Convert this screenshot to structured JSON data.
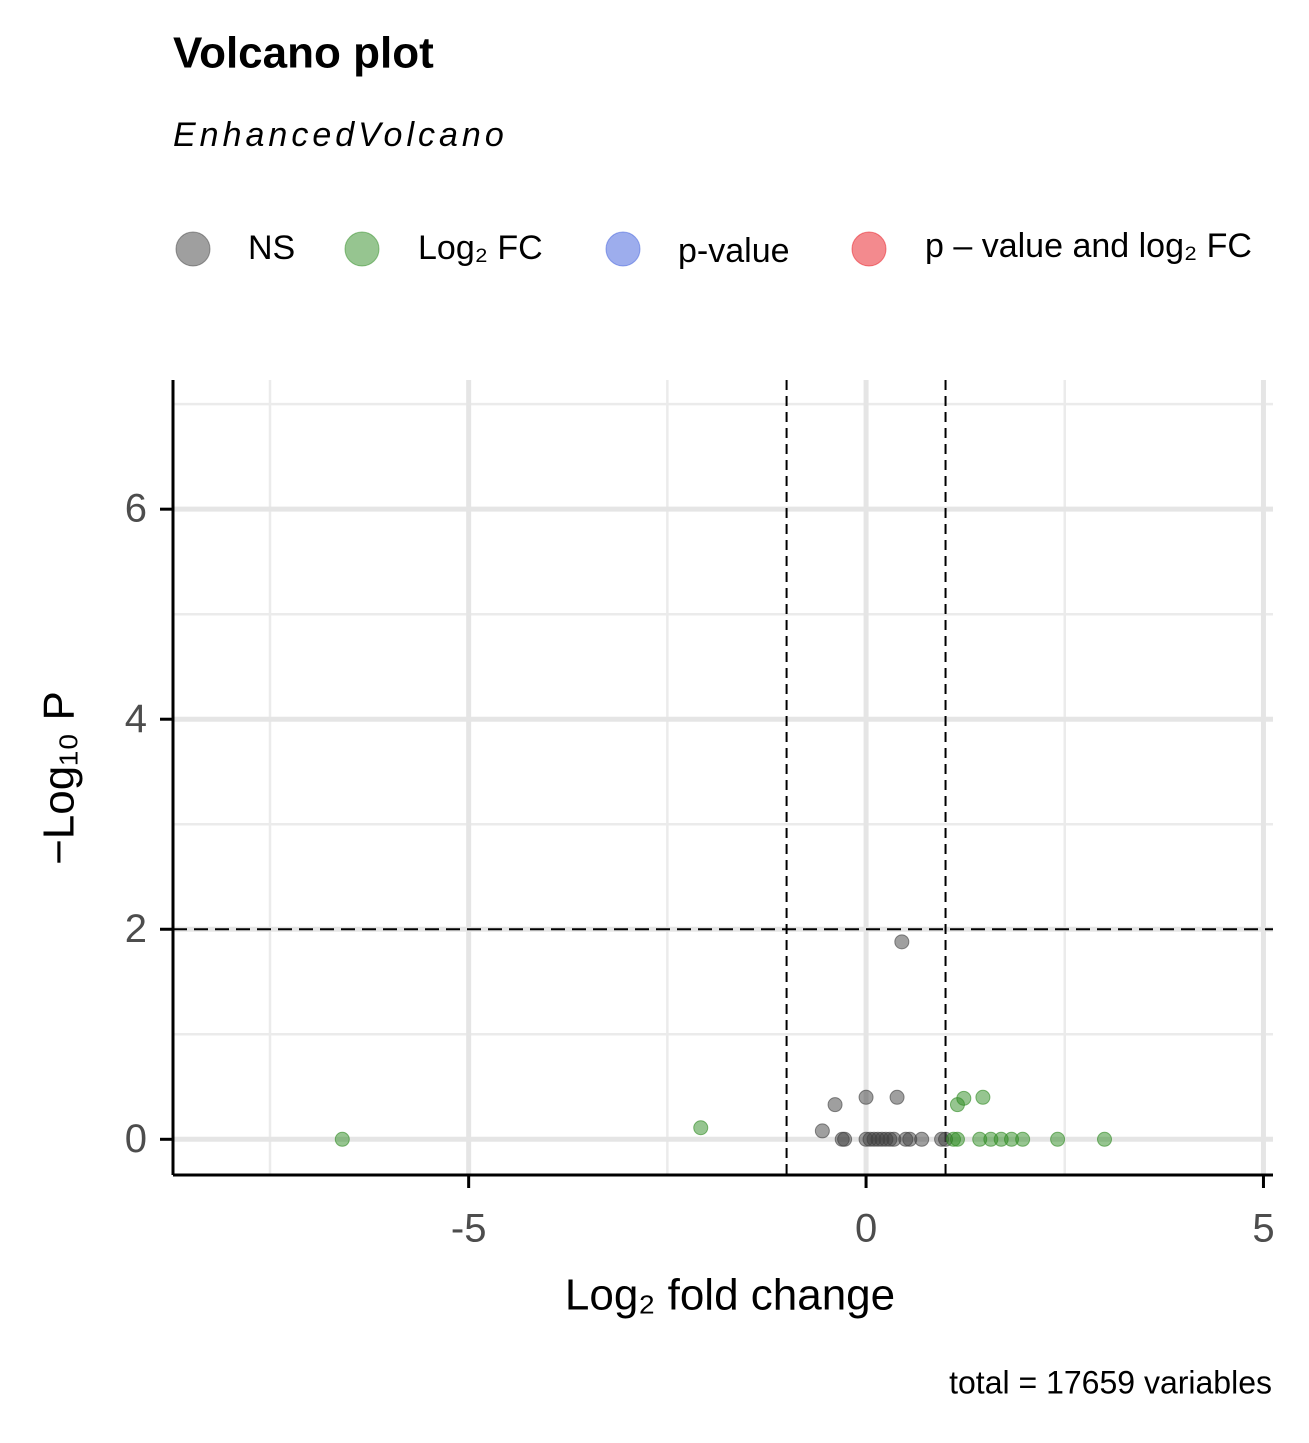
{
  "chart_data": {
    "type": "scatter",
    "title": "Volcano plot",
    "subtitle": "EnhancedVolcano",
    "x_label": "Log₂ fold change",
    "y_label": "−Log₁₀ P",
    "caption": "total = 17659 variables",
    "xlim": [
      -8.72,
      5.12
    ],
    "ylim": [
      -0.34,
      7.23
    ],
    "xticks": [
      -5,
      0,
      5
    ],
    "yticks": [
      0,
      2,
      4,
      6
    ],
    "x_minor_ticks": [
      -7.5,
      -2.5,
      2.5
    ],
    "y_minor_ticks": [
      1,
      3,
      5,
      7
    ],
    "grid": true,
    "fc_cutoff": [
      -1,
      1
    ],
    "p_cutoff": 2,
    "legend_position": "top",
    "series": [
      {
        "name": "NS",
        "color": "#404040",
        "x": [
          0.45,
          0,
          0.39,
          -0.39,
          -0.55,
          -0.3,
          -0.27,
          0,
          0.05,
          0.1,
          0.15,
          0.2,
          0.25,
          0.3,
          0.35,
          0.5,
          0.55,
          0.7,
          0.95,
          1.0
        ],
        "y": [
          1.88,
          0.4,
          0.4,
          0.33,
          0.08,
          0,
          0,
          0,
          0,
          0,
          0,
          0,
          0,
          0,
          0,
          0,
          0,
          0,
          0,
          0
        ]
      },
      {
        "name": "Log₂ FC",
        "color": "#2e8b22",
        "x": [
          -6.59,
          -2.08,
          1.15,
          1.23,
          1.47,
          1.1,
          1.15,
          1.43,
          1.57,
          1.7,
          1.83,
          1.97,
          2.41,
          3.0
        ],
        "y": [
          0,
          0.11,
          0.33,
          0.39,
          0.4,
          0,
          0,
          0,
          0,
          0,
          0,
          0,
          0,
          0
        ]
      },
      {
        "name": "p-value",
        "color": "#3b5bdb",
        "x": [],
        "y": []
      },
      {
        "name": "p – value and log₂ FC",
        "color": "#e8161e",
        "x": [],
        "y": []
      }
    ]
  }
}
